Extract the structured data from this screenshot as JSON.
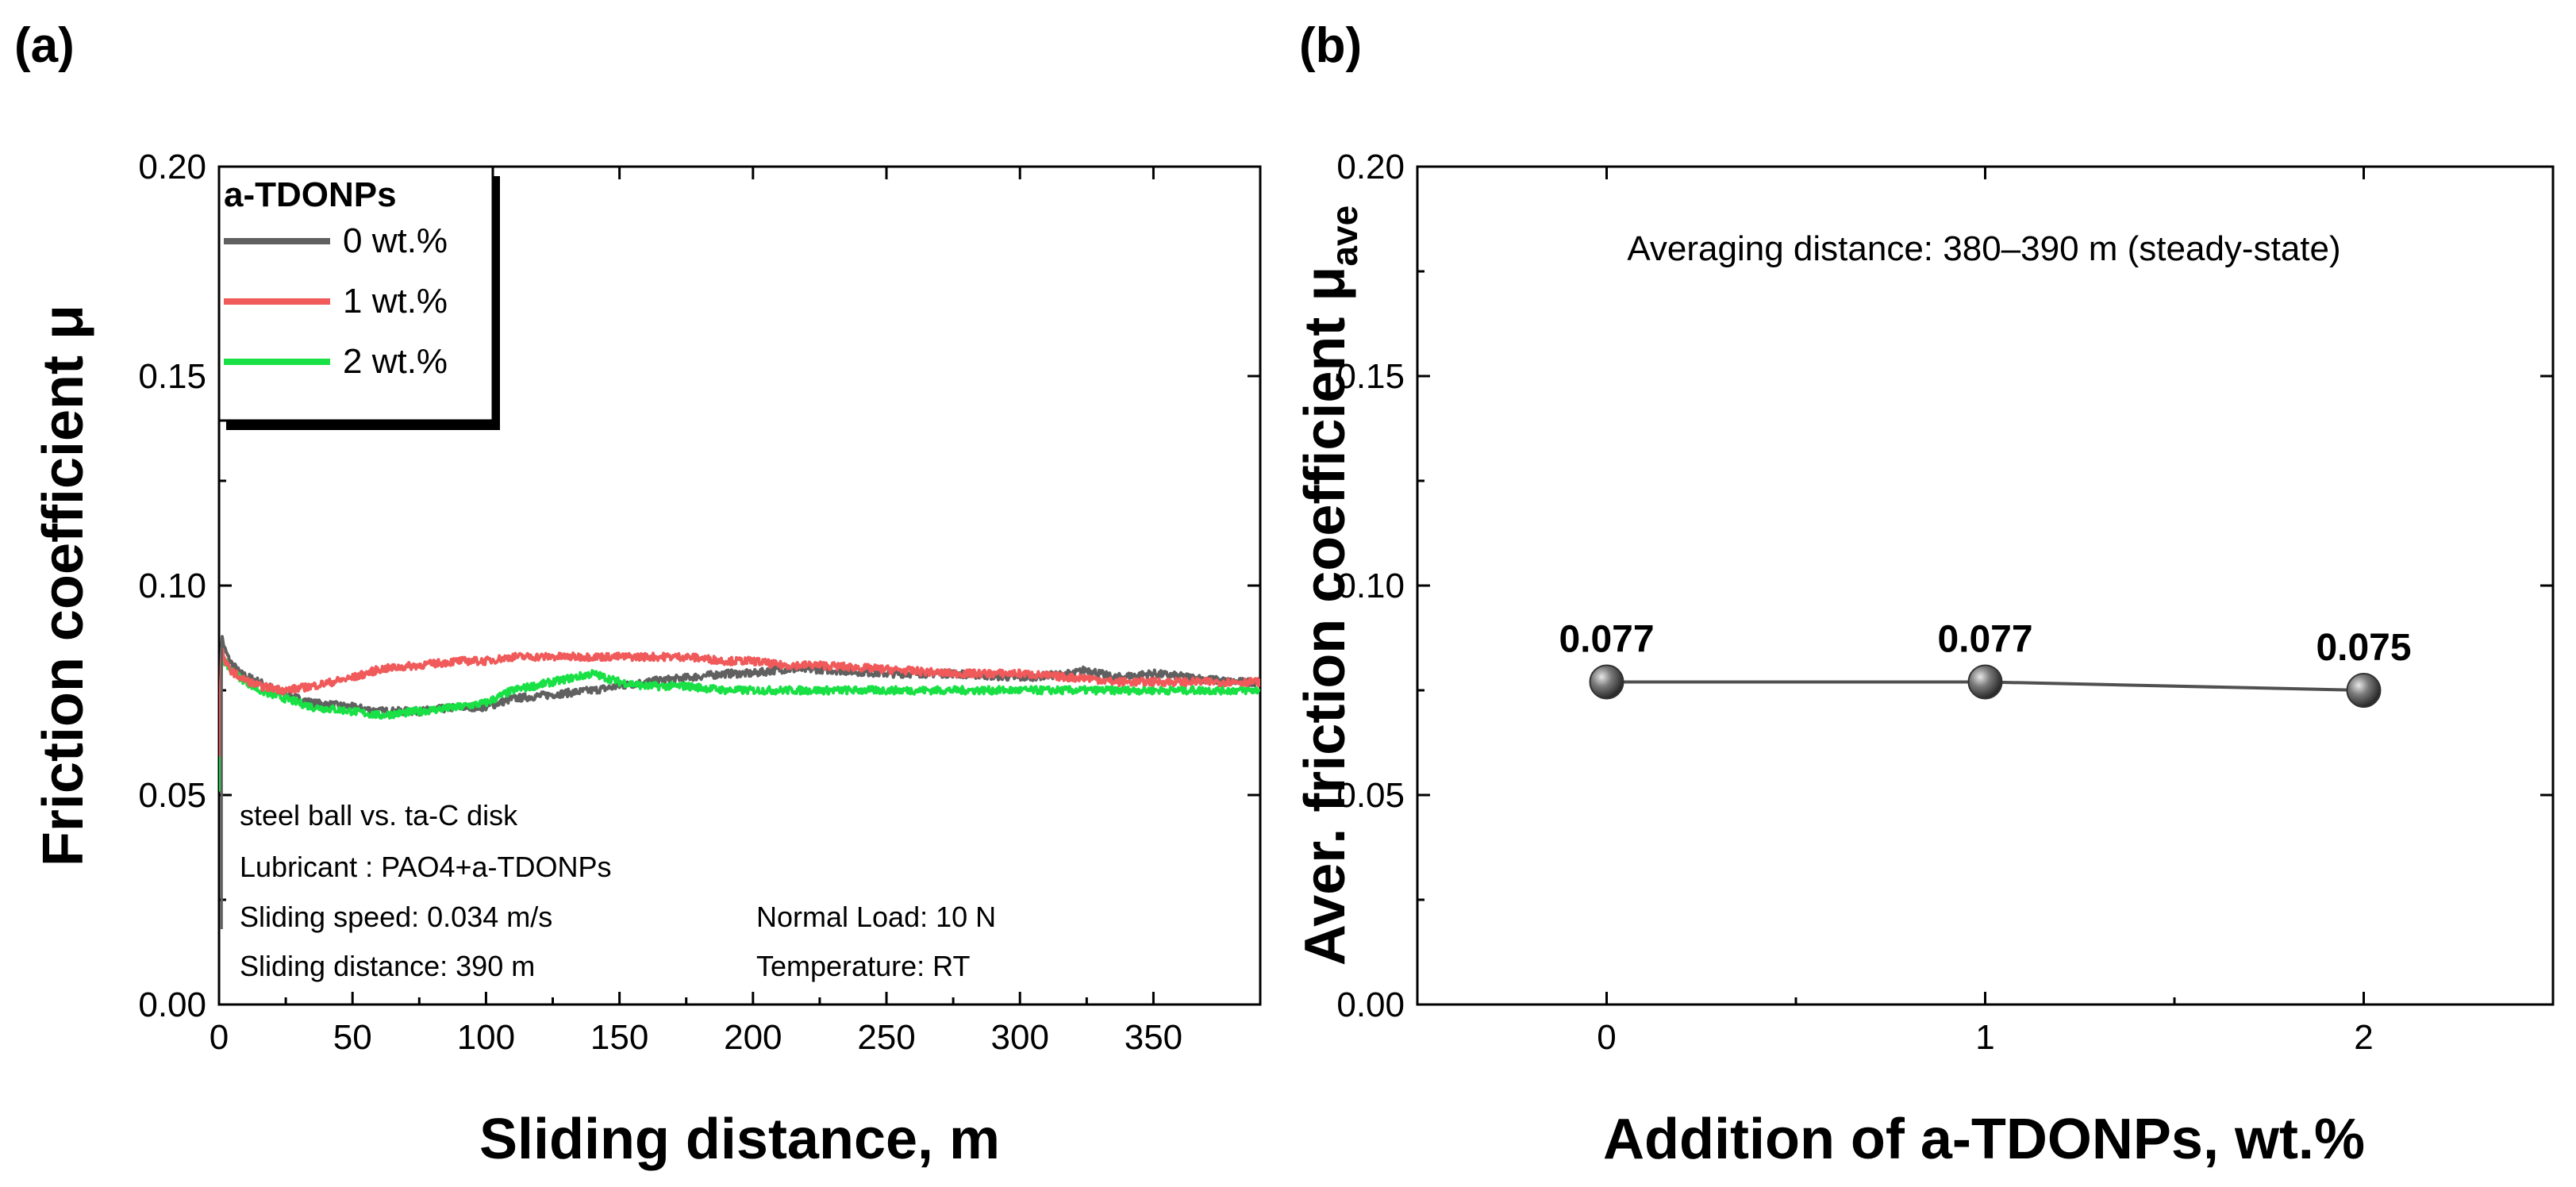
{
  "panels": {
    "a": {
      "label": "(a)",
      "legend_title": "a-TDONPs",
      "conditions": {
        "line1": "steel ball vs. ta-C disk",
        "line2": "Lubricant : PAO4+a-TDONPs",
        "line3": "Sliding  speed: 0.034 m/s",
        "line4": "Sliding  distance: 390 m",
        "line5": "Normal Load: 10 N",
        "line6": "Temperature: RT"
      }
    },
    "b": {
      "label": "(b)",
      "note": "Averaging distance: 380–390 m (steady-state)"
    }
  },
  "chart_data": [
    {
      "type": "line",
      "title": "",
      "xlabel": "Sliding distance, m",
      "ylabel": "Friction coefficient μ",
      "xlim": [
        0,
        390
      ],
      "ylim": [
        0.0,
        0.2
      ],
      "xticks": [
        "0",
        "50",
        "100",
        "150",
        "200",
        "250",
        "300",
        "350"
      ],
      "yticks": [
        "0.00",
        "0.05",
        "0.10",
        "0.15",
        "0.20"
      ],
      "legend_position": "top-left",
      "series": [
        {
          "name": "0 wt.%",
          "color": "#606060",
          "x": [
            0,
            1,
            2,
            4,
            8,
            15,
            25,
            35,
            50,
            60,
            75,
            90,
            100,
            110,
            125,
            140,
            150,
            160,
            175,
            190,
            200,
            210,
            225,
            250,
            275,
            300,
            320,
            325,
            335,
            350,
            365,
            380,
            390
          ],
          "values": [
            0.055,
            0.088,
            0.085,
            0.082,
            0.079,
            0.077,
            0.074,
            0.072,
            0.071,
            0.07,
            0.07,
            0.071,
            0.071,
            0.073,
            0.074,
            0.075,
            0.076,
            0.077,
            0.078,
            0.079,
            0.079,
            0.08,
            0.08,
            0.079,
            0.079,
            0.078,
            0.079,
            0.08,
            0.078,
            0.079,
            0.078,
            0.077,
            0.077
          ]
        },
        {
          "name": "1 wt.%",
          "color": "#f05a5a",
          "x": [
            0,
            1,
            2,
            4,
            8,
            15,
            25,
            35,
            50,
            60,
            75,
            90,
            100,
            110,
            125,
            140,
            150,
            160,
            175,
            190,
            200,
            210,
            225,
            250,
            275,
            300,
            320,
            325,
            335,
            350,
            365,
            380,
            390
          ],
          "values": [
            0.06,
            0.085,
            0.082,
            0.08,
            0.078,
            0.076,
            0.075,
            0.076,
            0.078,
            0.08,
            0.081,
            0.082,
            0.082,
            0.083,
            0.083,
            0.083,
            0.083,
            0.083,
            0.083,
            0.082,
            0.082,
            0.081,
            0.081,
            0.08,
            0.079,
            0.079,
            0.078,
            0.078,
            0.077,
            0.077,
            0.077,
            0.077,
            0.077
          ]
        },
        {
          "name": "2 wt.%",
          "color": "#19e045",
          "x": [
            0,
            1,
            2,
            4,
            8,
            15,
            25,
            35,
            50,
            60,
            75,
            90,
            100,
            110,
            125,
            140,
            150,
            160,
            175,
            190,
            200,
            210,
            225,
            250,
            275,
            300,
            320,
            325,
            335,
            350,
            365,
            380,
            390
          ],
          "values": [
            0.05,
            0.083,
            0.082,
            0.08,
            0.078,
            0.075,
            0.073,
            0.071,
            0.07,
            0.069,
            0.07,
            0.071,
            0.072,
            0.075,
            0.077,
            0.079,
            0.077,
            0.076,
            0.076,
            0.075,
            0.075,
            0.075,
            0.075,
            0.075,
            0.075,
            0.075,
            0.075,
            0.075,
            0.075,
            0.075,
            0.075,
            0.075,
            0.075
          ]
        }
      ]
    },
    {
      "type": "line",
      "title": "",
      "xlabel": "Addition of a-TDONPs, wt.%",
      "ylabel": "Aver. friction coefficient μ",
      "ylabel_subscript": "ave",
      "xlim": [
        -0.5,
        2.5
      ],
      "ylim": [
        0.0,
        0.2
      ],
      "xticks": [
        "0",
        "1",
        "2"
      ],
      "yticks": [
        "0.00",
        "0.05",
        "0.10",
        "0.15",
        "0.20"
      ],
      "categories": [
        "0",
        "1",
        "2"
      ],
      "values": [
        0.077,
        0.077,
        0.075
      ],
      "data_labels": [
        "0.077",
        "0.077",
        "0.075"
      ],
      "color": "#505050"
    }
  ]
}
